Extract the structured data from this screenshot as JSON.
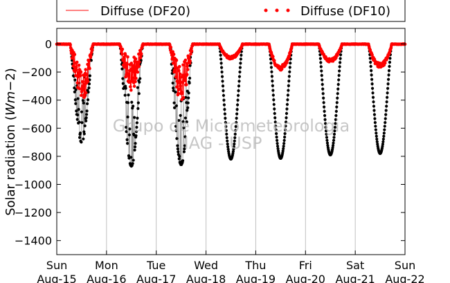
{
  "chart_data": {
    "type": "scatter",
    "ylabel": "Solar radiation ($Wm{-2}$)",
    "ylim": [
      -1500,
      100
    ],
    "yticks": [
      0,
      -200,
      -400,
      -600,
      -800,
      -1000,
      -1200,
      -1400
    ],
    "xlim": [
      "2015-08-15",
      "2015-08-22"
    ],
    "x_ticks": [
      {
        "date": "2015-08-15",
        "day": "Sun",
        "label": "Aug-15"
      },
      {
        "date": "2015-08-16",
        "day": "Mon",
        "label": "Aug-16"
      },
      {
        "date": "2015-08-17",
        "day": "Tue",
        "label": "Aug-17"
      },
      {
        "date": "2015-08-18",
        "day": "Wed",
        "label": "Aug-18"
      },
      {
        "date": "2015-08-19",
        "day": "Thu",
        "label": "Aug-19"
      },
      {
        "date": "2015-08-20",
        "day": "Fri",
        "label": "Aug-20"
      },
      {
        "date": "2015-08-21",
        "day": "Sat",
        "label": "Aug-21"
      },
      {
        "date": "2015-08-22",
        "day": "Sun",
        "label": "Aug-22"
      }
    ],
    "grid": "vertical",
    "legend_position": "top",
    "legend": [
      {
        "label": "Diffuse (DF20)",
        "style": "line",
        "color": "#ff0000"
      },
      {
        "label": "Diffuse (DF10)",
        "style": "dots",
        "color": "#ff0000"
      }
    ],
    "watermark": [
      "Grupo de Micrometeorologia",
      "IAG - USP"
    ],
    "colors": {
      "global": "#000000",
      "diffuse": "#ff0000",
      "grid": "#bfbfbf"
    },
    "days": [
      {
        "date": "2015-08-15",
        "sunrise_h": 6.4,
        "sunset_h": 17.6,
        "global_peak": -700,
        "diffuse_peak": -420,
        "cloudy": true
      },
      {
        "date": "2015-08-16",
        "sunrise_h": 6.4,
        "sunset_h": 17.6,
        "global_peak": -870,
        "diffuse_peak": -330,
        "cloudy": true
      },
      {
        "date": "2015-08-17",
        "sunrise_h": 6.4,
        "sunset_h": 17.6,
        "global_peak": -860,
        "diffuse_peak": -410,
        "cloudy": true
      },
      {
        "date": "2015-08-18",
        "sunrise_h": 6.4,
        "sunset_h": 17.6,
        "global_peak": -820,
        "diffuse_peak": -110,
        "cloudy": false
      },
      {
        "date": "2015-08-19",
        "sunrise_h": 6.4,
        "sunset_h": 17.6,
        "global_peak": -815,
        "diffuse_peak": -190,
        "cloudy": false
      },
      {
        "date": "2015-08-20",
        "sunrise_h": 6.4,
        "sunset_h": 17.6,
        "global_peak": -790,
        "diffuse_peak": -130,
        "cloudy": false
      },
      {
        "date": "2015-08-21",
        "sunrise_h": 6.4,
        "sunset_h": 17.6,
        "global_peak": -780,
        "diffuse_peak": -170,
        "cloudy": false
      }
    ]
  }
}
